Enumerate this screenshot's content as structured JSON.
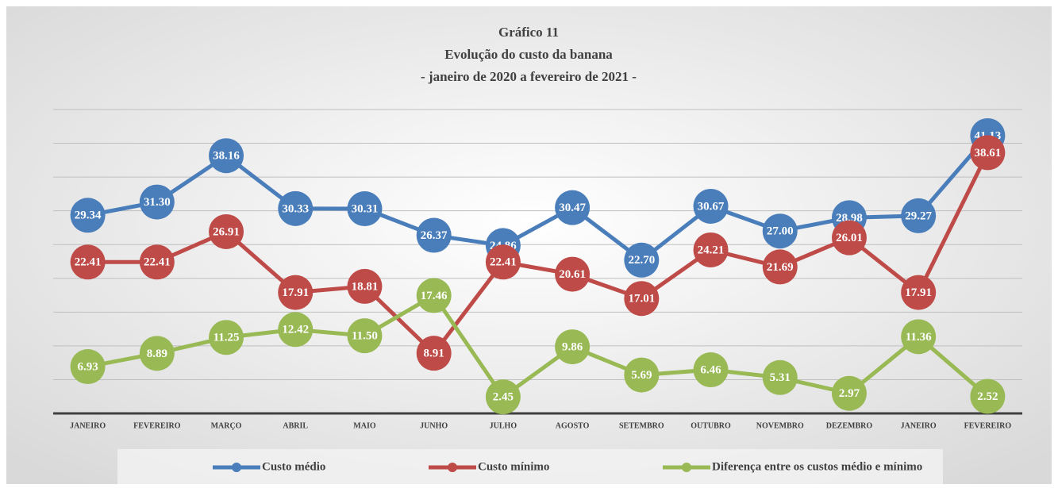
{
  "chart_data": {
    "type": "line",
    "title": [
      "Gráfico 11",
      "Evolução do custo da banana",
      "- janeiro de 2020 a fevereiro de 2021 -"
    ],
    "categories": [
      "JANEIRO",
      "FEVEREIRO",
      "MARÇO",
      "ABRIL",
      "MAIO",
      "JUNHO",
      "JULHO",
      "AGOSTO",
      "SETEMBRO",
      "OUTUBRO",
      "NOVEMBRO",
      "DEZEMBRO",
      "JANEIRO",
      "FEVEREIRO"
    ],
    "series": [
      {
        "name": "Custo médio",
        "color": "#4a7ebb",
        "values": [
          29.34,
          31.3,
          38.16,
          30.33,
          30.31,
          26.37,
          24.86,
          30.47,
          22.7,
          30.67,
          27,
          28.98,
          29.27,
          41.13
        ],
        "value_labels": [
          "29.34",
          "31.30",
          "38.16",
          "30.33",
          "30.31",
          "26.37",
          "24.86",
          "30.47",
          "22.70",
          "30.67",
          "27.00",
          "28.98",
          "29.27",
          "41.13"
        ]
      },
      {
        "name": "Custo mínimo",
        "color": "#be4b48",
        "values": [
          22.41,
          22.41,
          26.91,
          17.91,
          18.81,
          8.91,
          22.41,
          20.61,
          17.01,
          24.21,
          21.69,
          26.01,
          17.91,
          38.61
        ],
        "value_labels": [
          "22.41",
          "22.41",
          "26.91",
          "17.91",
          "18.81",
          "8.91",
          "22.41",
          "20.61",
          "17.01",
          "24.21",
          "21.69",
          "26.01",
          "17.91",
          "38.61"
        ]
      },
      {
        "name": "Diferença entre os custos médio e mínimo",
        "color": "#98b954",
        "values": [
          6.93,
          8.89,
          11.25,
          12.42,
          11.5,
          17.46,
          2.45,
          9.86,
          5.69,
          6.46,
          5.31,
          2.97,
          11.36,
          2.52
        ],
        "value_labels": [
          "6.93",
          "8.89",
          "11.25",
          "12.42",
          "11.50",
          "17.46",
          "2.45",
          "9.86",
          "5.69",
          "6.46",
          "5.31",
          "2.97",
          "11.36",
          "2.52"
        ]
      }
    ],
    "ylim": [
      0,
      45
    ],
    "yticks": [
      0,
      5,
      10,
      15,
      20,
      25,
      30,
      35,
      40,
      45
    ],
    "grid": true
  }
}
